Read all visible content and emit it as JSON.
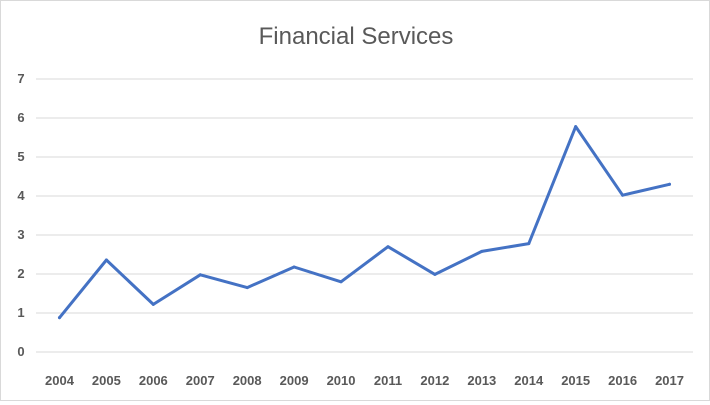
{
  "chart_data": {
    "type": "line",
    "title": "Financial Services",
    "categories": [
      "2004",
      "2005",
      "2006",
      "2007",
      "2008",
      "2009",
      "2010",
      "2011",
      "2012",
      "2013",
      "2014",
      "2015",
      "2016",
      "2017"
    ],
    "series": [
      {
        "values": [
          0.88,
          2.36,
          1.22,
          1.98,
          1.65,
          2.18,
          1.8,
          2.7,
          1.99,
          2.58,
          2.78,
          5.78,
          4.02,
          4.3
        ]
      }
    ],
    "yticks": [
      "0",
      "1",
      "2",
      "3",
      "4",
      "5",
      "6",
      "7"
    ],
    "ylim": [
      0,
      7
    ],
    "grid": true,
    "legend": "none",
    "line_color": "#4472c4",
    "grid_color": "#d9d9d9",
    "text_color": "#595959"
  }
}
